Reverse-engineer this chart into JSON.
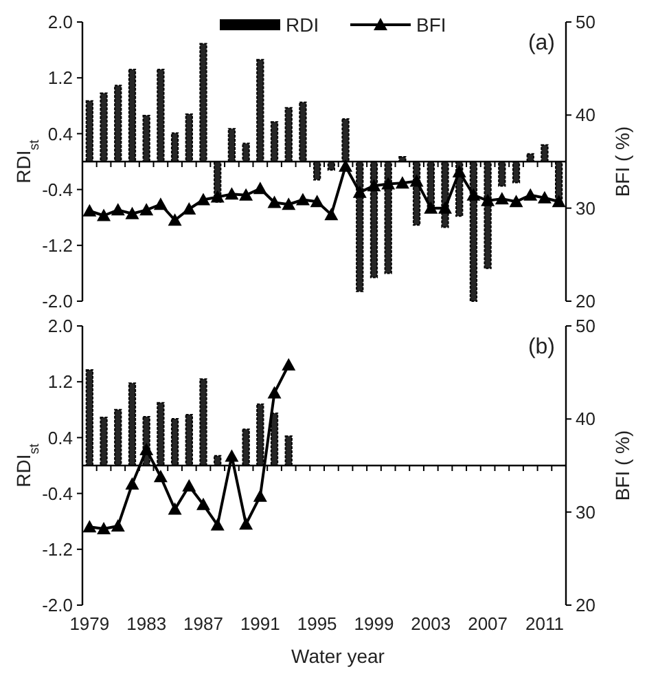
{
  "chart_data": [
    {
      "type": "bar",
      "title": "(a)",
      "ylabel": "RDI$_{st}$",
      "y2label": "BFI ( %)",
      "legend": "top",
      "tick_labels": "y",
      "categories": [
        "1979",
        null,
        null,
        null,
        "1983",
        null,
        null,
        null,
        "1987",
        null,
        null,
        null,
        "1991",
        null,
        null,
        null,
        "1995",
        null,
        null,
        null,
        "1999",
        null,
        null,
        null,
        "2003",
        null,
        null,
        null,
        "2007",
        null,
        null,
        null,
        "2011",
        null
      ],
      "ylim": [
        -2,
        2
      ],
      "yticks": [
        {
          "value": -2,
          "label": "-2.0"
        },
        {
          "value": -1.2,
          "label": "-1.2"
        },
        {
          "value": -0.4,
          "label": "-0.4"
        },
        {
          "value": 0.4,
          "label": "0.4"
        },
        {
          "value": 1.2,
          "label": "1.2"
        },
        {
          "value": 2,
          "label": "2.0"
        }
      ],
      "y2lim": [
        20,
        50
      ],
      "y2ticks": [
        20,
        30,
        40,
        50
      ],
      "series": [
        {
          "name": "RDI",
          "color": "#000000",
          "values": [
            0.87,
            0.98,
            1.09,
            1.32,
            0.66,
            1.32,
            0.41,
            0.68,
            1.69,
            -0.58,
            0.47,
            0.26,
            1.46,
            0.57,
            0.77,
            0.85,
            -0.26,
            -0.12,
            0.61,
            -1.86,
            -1.66,
            -1.6,
            0.07,
            -0.91,
            -0.71,
            -0.94,
            -0.78,
            -2.0,
            -1.53,
            -0.35,
            -0.3,
            0.11,
            0.24,
            -0.58
          ]
        },
        {
          "name": "BFI",
          "type": "line",
          "axis": "y2",
          "color": "#000000",
          "marker": "triangle",
          "values": [
            29.7,
            29.2,
            29.8,
            29.4,
            29.8,
            30.4,
            28.7,
            29.9,
            30.9,
            31.2,
            31.5,
            31.4,
            32.1,
            30.6,
            30.4,
            30.9,
            30.7,
            29.3,
            34.5,
            31.7,
            32.4,
            32.6,
            32.7,
            32.9,
            30.0,
            30.0,
            33.9,
            31.4,
            30.8,
            31.0,
            30.7,
            31.4,
            31.1,
            30.7
          ]
        }
      ]
    },
    {
      "type": "bar",
      "title": "(b)",
      "ylabel": "RDI$_{st}$",
      "y2label": "BFI ( %)",
      "xlabel": "Water year",
      "categories": [
        "1979",
        null,
        null,
        null,
        "1983",
        null,
        null,
        null,
        "1987",
        null,
        null,
        null,
        "1991",
        null,
        null,
        null,
        "1995",
        null,
        null,
        null,
        "1999",
        null,
        null,
        null,
        "2003",
        null,
        null,
        null,
        "2007",
        null,
        null,
        null,
        "2011",
        null
      ],
      "ylim": [
        -2,
        2
      ],
      "yticks": [
        {
          "value": -2,
          "label": "-2.0"
        },
        {
          "value": -1.2,
          "label": "-1.2"
        },
        {
          "value": -0.4,
          "label": "-0.4"
        },
        {
          "value": 0.4,
          "label": "0.4"
        },
        {
          "value": 1.2,
          "label": "1.2"
        },
        {
          "value": 2,
          "label": "2.0"
        }
      ],
      "y2lim": [
        20,
        50
      ],
      "y2ticks": [
        20,
        30,
        40,
        50
      ],
      "series": [
        {
          "color": "#000000",
          "values": [
            1.37,
            0.69,
            0.8,
            1.18,
            0.7,
            0.9,
            0.67,
            0.73,
            1.24,
            0.14,
            null,
            0.52,
            0.88,
            0.75,
            0.42,
            null,
            null,
            null,
            null,
            null,
            null,
            null,
            null,
            null,
            null,
            null,
            null,
            null,
            null,
            null,
            null,
            null,
            null,
            null
          ]
        },
        {
          "type": "line",
          "axis": "y2",
          "color": "#000000",
          "marker": "triangle",
          "values": [
            28.4,
            28.2,
            28.5,
            33.0,
            36.7,
            33.8,
            30.3,
            32.8,
            30.8,
            28.6,
            36.0,
            28.7,
            31.7,
            42.8,
            45.8,
            null,
            null,
            null,
            null,
            null,
            null,
            null,
            null,
            null,
            null,
            null,
            null,
            null,
            null,
            null,
            null,
            null,
            null,
            null
          ]
        }
      ]
    }
  ]
}
